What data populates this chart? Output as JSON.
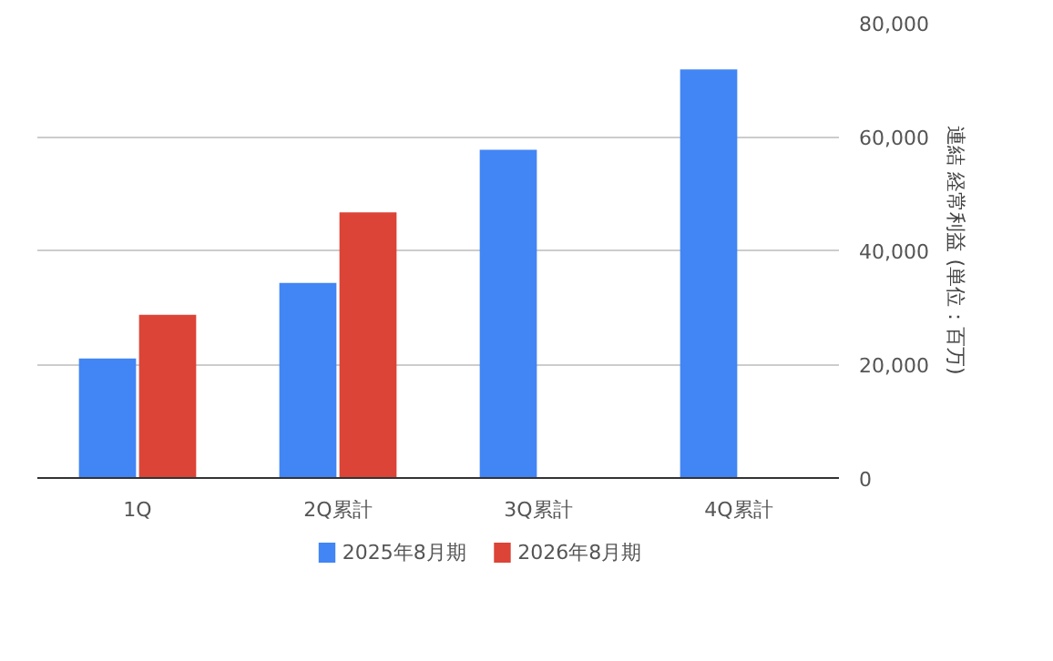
{
  "chart_data": {
    "type": "bar",
    "ylabel": "連結 経常利益 (単位：百万)",
    "categories": [
      "1Q",
      "2Q累計",
      "3Q累計",
      "4Q累計"
    ],
    "series": [
      {
        "name": "2025年8月期",
        "color": "#4285f4",
        "values": [
          21000,
          34300,
          57700,
          71800
        ]
      },
      {
        "name": "2026年8月期",
        "color": "#db4437",
        "values": [
          28700,
          46700,
          null,
          null
        ]
      }
    ],
    "ylim": [
      0,
      80000
    ],
    "yticks": [
      0,
      {
        "value": 20000,
        "label": "20,000"
      },
      {
        "value": 40000,
        "label": "40,000"
      },
      {
        "value": 60000,
        "label": "60,000"
      },
      {
        "value": 80000,
        "label": "80,000"
      }
    ],
    "grid": "y",
    "legend": "bottom"
  }
}
